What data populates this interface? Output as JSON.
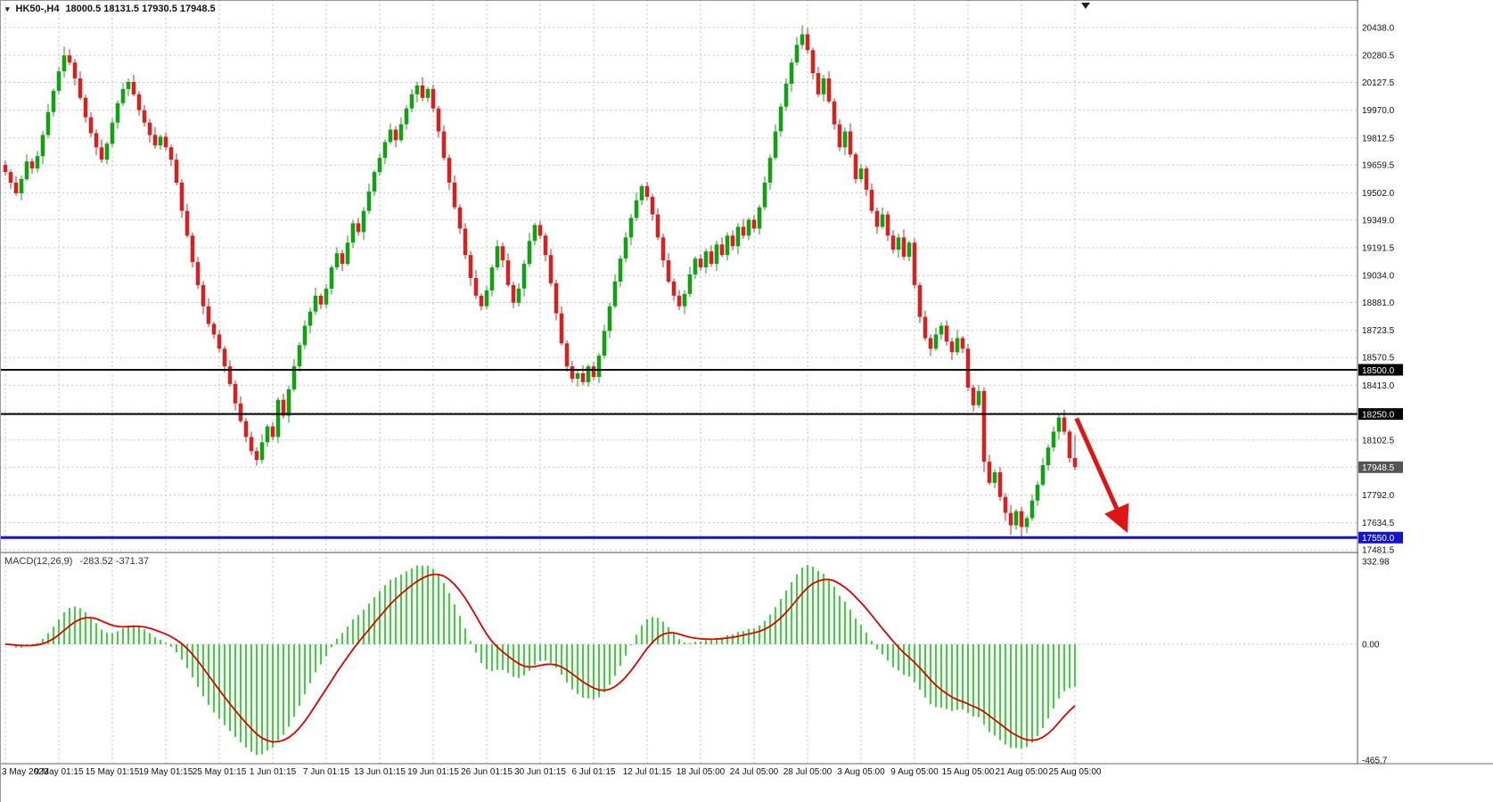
{
  "header": {
    "dropdown_icon": "▾",
    "symbol_period": "HK50-,H4",
    "ohlc": "18000.5 18131.5 17930.5 17948.5"
  },
  "colors": {
    "bull": "#13a113",
    "bear": "#d22323",
    "grid": "#c6c6c6",
    "level_black": "#000000",
    "level_blue": "#1414c8",
    "arrow_red": "#e01414",
    "macd_hist": "#3bd43b",
    "macd_signal": "#dd0000",
    "axis_text": "#111111",
    "current_price_bg": "#555555"
  },
  "chart_data": {
    "type": "candlestick",
    "symbol": "HK50-",
    "timeframe": "H4",
    "current_bar_ohlc": {
      "open": 18000.5,
      "high": 18131.5,
      "low": 17930.5,
      "close": 17948.5
    },
    "price_axis": {
      "ticks": [
        {
          "v": 20438.0,
          "label": "20438.0"
        },
        {
          "v": 20280.5,
          "label": "20280.5"
        },
        {
          "v": 20127.5,
          "label": "20127.5"
        },
        {
          "v": 19970.0,
          "label": "19970.0"
        },
        {
          "v": 19812.5,
          "label": "19812.5"
        },
        {
          "v": 19659.5,
          "label": "19659.5"
        },
        {
          "v": 19502.0,
          "label": "19502.0"
        },
        {
          "v": 19349.0,
          "label": "19349.0"
        },
        {
          "v": 19191.5,
          "label": "19191.5"
        },
        {
          "v": 19034.0,
          "label": "19034.0"
        },
        {
          "v": 18881.0,
          "label": "18881.0"
        },
        {
          "v": 18723.5,
          "label": "18723.5"
        },
        {
          "v": 18570.5,
          "label": "18570.5"
        },
        {
          "v": 18413.0,
          "label": "18413.0"
        },
        {
          "v": 18255.5,
          "label": ""
        },
        {
          "v": 18102.5,
          "label": "18102.5"
        },
        {
          "v": 17948.5,
          "label": ""
        },
        {
          "v": 17792.0,
          "label": "17792.0"
        },
        {
          "v": 17634.5,
          "label": "17634.5"
        },
        {
          "v": 17481.5,
          "label": "17481.5"
        }
      ],
      "boxed": [
        {
          "v": 18500.0,
          "label": "18500.0",
          "bg": "#000000",
          "fg": "#ffffff"
        },
        {
          "v": 18250.0,
          "label": "18250.0",
          "bg": "#000000",
          "fg": "#ffffff"
        },
        {
          "v": 17948.5,
          "label": "17948.5",
          "bg": "#555555",
          "fg": "#ffffff"
        },
        {
          "v": 17550.0,
          "label": "17550.0",
          "bg": "#1414c8",
          "fg": "#ffffff"
        }
      ]
    },
    "levels": [
      {
        "v": 18500.0,
        "color": "#000000",
        "w": 2
      },
      {
        "v": 18250.0,
        "color": "#000000",
        "w": 2
      },
      {
        "v": 17550.0,
        "color": "#1414c8",
        "w": 3
      }
    ],
    "arrow": {
      "from_bar": 200.3,
      "from_price": 18225,
      "to_bar": 208.6,
      "to_price": 17660,
      "color": "#e01414"
    },
    "time_axis": {
      "labels": [
        "3 May 2023",
        "9 May 01:15",
        "15 May 01:15",
        "19 May 01:15",
        "25 May 01:15",
        "1 Jun 01:15",
        "7 Jun 01:15",
        "13 Jun 01:15",
        "19 Jun 01:15",
        "26 Jun 01:15",
        "30 Jun 01:15",
        "6 Jul 01:15",
        "12 Jul 01:15",
        "18 Jul 05:00",
        "24 Jul 05:00",
        "28 Jul 05:00",
        "3 Aug 05:00",
        "9 Aug 05:00",
        "15 Aug 05:00",
        "21 Aug 05:00",
        "25 Aug 05:00"
      ],
      "bars_per_label": 10
    },
    "indicator": {
      "name": "MACD(12,26,9)",
      "values_text": "-283.52 -371.37",
      "value_main": -283.52,
      "value_signal": -371.37,
      "fast": 12,
      "slow": 26,
      "signal": 9,
      "axis_ticks": [
        {
          "v": 332.98,
          "label": "332.98"
        },
        {
          "v": 0,
          "label": "0.00"
        },
        {
          "v": -465.7,
          "label": "-465.7"
        }
      ]
    },
    "candles": [
      [
        19660,
        19685,
        19600,
        19620
      ],
      [
        19620,
        19635,
        19525,
        19560
      ],
      [
        19560,
        19595,
        19485,
        19500
      ],
      [
        19500,
        19600,
        19460,
        19580
      ],
      [
        19580,
        19720,
        19568,
        19680
      ],
      [
        19680,
        19698,
        19610,
        19640
      ],
      [
        19640,
        19740,
        19618,
        19710
      ],
      [
        19710,
        19852,
        19665,
        19830
      ],
      [
        19830,
        20005,
        19812,
        19960
      ],
      [
        19960,
        20092,
        19935,
        20080
      ],
      [
        20080,
        20215,
        20060,
        20190
      ],
      [
        20190,
        20330,
        20155,
        20280
      ],
      [
        20280,
        20315,
        20225,
        20240
      ],
      [
        20240,
        20260,
        20110,
        20150
      ],
      [
        20150,
        20190,
        20028,
        20040
      ],
      [
        20040,
        20058,
        19900,
        19930
      ],
      [
        19930,
        19960,
        19818,
        19840
      ],
      [
        19840,
        19862,
        19715,
        19760
      ],
      [
        19760,
        19805,
        19672,
        19690
      ],
      [
        19690,
        19792,
        19665,
        19780
      ],
      [
        19780,
        19925,
        19760,
        19900
      ],
      [
        19900,
        20025,
        19865,
        20010
      ],
      [
        20010,
        20125,
        19995,
        20090
      ],
      [
        20090,
        20150,
        20050,
        20130
      ],
      [
        20130,
        20170,
        20048,
        20060
      ],
      [
        20060,
        20078,
        19940,
        19970
      ],
      [
        19970,
        20000,
        19878,
        19900
      ],
      [
        19900,
        19922,
        19785,
        19830
      ],
      [
        19830,
        19875,
        19752,
        19770
      ],
      [
        19770,
        19832,
        19745,
        19820
      ],
      [
        19820,
        19845,
        19740,
        19760
      ],
      [
        19760,
        19775,
        19655,
        19690
      ],
      [
        19690,
        19725,
        19545,
        19560
      ],
      [
        19560,
        19580,
        19360,
        19400
      ],
      [
        19400,
        19440,
        19248,
        19260
      ],
      [
        19260,
        19278,
        19080,
        19110
      ],
      [
        19110,
        19140,
        18958,
        18980
      ],
      [
        18980,
        19002,
        18815,
        18860
      ],
      [
        18860,
        18905,
        18742,
        18760
      ],
      [
        18760,
        18772,
        18675,
        18700
      ],
      [
        18700,
        18725,
        18600,
        18620
      ],
      [
        18620,
        18635,
        18485,
        18520
      ],
      [
        18520,
        18555,
        18405,
        18420
      ],
      [
        18420,
        18440,
        18270,
        18310
      ],
      [
        18310,
        18350,
        18198,
        18210
      ],
      [
        18210,
        18228,
        18090,
        18120
      ],
      [
        18120,
        18150,
        18018,
        18040
      ],
      [
        18040,
        18062,
        17958,
        17990
      ],
      [
        17990,
        18135,
        17972,
        18090
      ],
      [
        18090,
        18192,
        18065,
        18180
      ],
      [
        18180,
        18205,
        18100,
        18120
      ],
      [
        18120,
        18345,
        18085,
        18330
      ],
      [
        18330,
        18365,
        18225,
        18240
      ],
      [
        18240,
        18410,
        18200,
        18390
      ],
      [
        18390,
        18560,
        18378,
        18520
      ],
      [
        18520,
        18658,
        18490,
        18640
      ],
      [
        18640,
        18780,
        18618,
        18750
      ],
      [
        18750,
        18852,
        18705,
        18830
      ],
      [
        18830,
        18965,
        18812,
        18920
      ],
      [
        18920,
        18932,
        18845,
        18870
      ],
      [
        18870,
        18985,
        18850,
        18960
      ],
      [
        18960,
        19095,
        18925,
        19080
      ],
      [
        19080,
        19195,
        19065,
        19160
      ],
      [
        19160,
        19180,
        19060,
        19100
      ],
      [
        19100,
        19260,
        19088,
        19220
      ],
      [
        19220,
        19348,
        19190,
        19330
      ],
      [
        19330,
        19360,
        19258,
        19280
      ],
      [
        19280,
        19422,
        19235,
        19400
      ],
      [
        19400,
        19555,
        19382,
        19510
      ],
      [
        19510,
        19632,
        19485,
        19620
      ],
      [
        19620,
        19725,
        19600,
        19700
      ],
      [
        19700,
        19805,
        19665,
        19790
      ],
      [
        19790,
        19895,
        19775,
        19860
      ],
      [
        19860,
        19880,
        19760,
        19800
      ],
      [
        19800,
        19930,
        19788,
        19890
      ],
      [
        19890,
        19998,
        19860,
        19980
      ],
      [
        19980,
        20090,
        19958,
        20060
      ],
      [
        20060,
        20132,
        20015,
        20110
      ],
      [
        20110,
        20155,
        20022,
        20040
      ],
      [
        20040,
        20102,
        20015,
        20090
      ],
      [
        20090,
        20115,
        19960,
        19980
      ],
      [
        19980,
        19995,
        19815,
        19850
      ],
      [
        19850,
        19885,
        19685,
        19700
      ],
      [
        19700,
        19720,
        19520,
        19560
      ],
      [
        19560,
        19600,
        19408,
        19420
      ],
      [
        19420,
        19438,
        19270,
        19300
      ],
      [
        19300,
        19330,
        19128,
        19150
      ],
      [
        19150,
        19172,
        18975,
        19020
      ],
      [
        19020,
        19065,
        18902,
        18920
      ],
      [
        18920,
        18932,
        18835,
        18860
      ],
      [
        18860,
        18975,
        18840,
        18950
      ],
      [
        18950,
        19095,
        18915,
        19080
      ],
      [
        19080,
        19235,
        19065,
        19200
      ],
      [
        19200,
        19220,
        19080,
        19120
      ],
      [
        19120,
        19160,
        18968,
        18980
      ],
      [
        18980,
        18998,
        18850,
        18880
      ],
      [
        18880,
        18990,
        18858,
        18960
      ],
      [
        18960,
        19122,
        18915,
        19100
      ],
      [
        19100,
        19275,
        19082,
        19230
      ],
      [
        19230,
        19332,
        19205,
        19320
      ],
      [
        19320,
        19345,
        19240,
        19260
      ],
      [
        19260,
        19275,
        19115,
        19150
      ],
      [
        19150,
        19185,
        18975,
        18990
      ],
      [
        18990,
        19010,
        18780,
        18820
      ],
      [
        18820,
        18860,
        18638,
        18650
      ],
      [
        18650,
        18668,
        18490,
        18520
      ],
      [
        18520,
        18550,
        18428,
        18450
      ],
      [
        18450,
        18502,
        18405,
        18480
      ],
      [
        18480,
        18525,
        18412,
        18430
      ],
      [
        18430,
        18532,
        18405,
        18520
      ],
      [
        18520,
        18545,
        18440,
        18460
      ],
      [
        18460,
        18595,
        18425,
        18580
      ],
      [
        18580,
        18755,
        18565,
        18720
      ],
      [
        18720,
        18880,
        18680,
        18860
      ],
      [
        18860,
        19040,
        18848,
        19000
      ],
      [
        19000,
        19148,
        18970,
        19130
      ],
      [
        19130,
        19280,
        19108,
        19250
      ],
      [
        19250,
        19382,
        19205,
        19360
      ],
      [
        19360,
        19505,
        19342,
        19460
      ],
      [
        19460,
        19552,
        19435,
        19540
      ],
      [
        19540,
        19565,
        19460,
        19480
      ],
      [
        19480,
        19495,
        19345,
        19380
      ],
      [
        19380,
        19415,
        19235,
        19250
      ],
      [
        19250,
        19270,
        19080,
        19120
      ],
      [
        19120,
        19160,
        18988,
        19000
      ],
      [
        19000,
        19018,
        18890,
        18920
      ],
      [
        18920,
        18950,
        18838,
        18860
      ],
      [
        18860,
        18952,
        18815,
        18930
      ],
      [
        18930,
        19085,
        18912,
        19040
      ],
      [
        19040,
        19142,
        19015,
        19130
      ],
      [
        19130,
        19155,
        19060,
        19080
      ],
      [
        19080,
        19185,
        19045,
        19170
      ],
      [
        19170,
        19205,
        19085,
        19100
      ],
      [
        19100,
        19230,
        19060,
        19210
      ],
      [
        19210,
        19250,
        19138,
        19150
      ],
      [
        19150,
        19278,
        19120,
        19260
      ],
      [
        19260,
        19290,
        19178,
        19200
      ],
      [
        19200,
        19332,
        19155,
        19310
      ],
      [
        19310,
        19355,
        19242,
        19260
      ],
      [
        19260,
        19362,
        19235,
        19350
      ],
      [
        19350,
        19375,
        19280,
        19300
      ],
      [
        19300,
        19435,
        19265,
        19420
      ],
      [
        19420,
        19595,
        19405,
        19560
      ],
      [
        19560,
        19720,
        19520,
        19700
      ],
      [
        19700,
        19890,
        19688,
        19850
      ],
      [
        19850,
        20008,
        19820,
        19990
      ],
      [
        19990,
        20150,
        19968,
        20120
      ],
      [
        20120,
        20262,
        20075,
        20240
      ],
      [
        20240,
        20385,
        20222,
        20340
      ],
      [
        20340,
        20450,
        20315,
        20400
      ],
      [
        20400,
        20435,
        20290,
        20310
      ],
      [
        20310,
        20325,
        20145,
        20180
      ],
      [
        20180,
        20215,
        20045,
        20060
      ],
      [
        20060,
        20170,
        20020,
        20150
      ],
      [
        20150,
        20190,
        20008,
        20020
      ],
      [
        20020,
        20038,
        19860,
        19890
      ],
      [
        19890,
        19920,
        19738,
        19760
      ],
      [
        19760,
        19872,
        19715,
        19850
      ],
      [
        19850,
        19895,
        19702,
        19720
      ],
      [
        19720,
        19732,
        19555,
        19580
      ],
      [
        19580,
        19665,
        19560,
        19640
      ],
      [
        19640,
        19655,
        19485,
        19520
      ],
      [
        19520,
        19555,
        19385,
        19400
      ],
      [
        19400,
        19420,
        19270,
        19310
      ],
      [
        19310,
        19420,
        19298,
        19380
      ],
      [
        19380,
        19398,
        19230,
        19260
      ],
      [
        19260,
        19290,
        19158,
        19180
      ],
      [
        19180,
        19272,
        19135,
        19250
      ],
      [
        19250,
        19295,
        19122,
        19140
      ],
      [
        19140,
        19232,
        19115,
        19220
      ],
      [
        19220,
        19245,
        18960,
        18980
      ],
      [
        18980,
        18995,
        18765,
        18800
      ],
      [
        18800,
        18835,
        18665,
        18680
      ],
      [
        18680,
        18700,
        18580,
        18620
      ],
      [
        18620,
        18740,
        18608,
        18700
      ],
      [
        18700,
        18768,
        18670,
        18750
      ],
      [
        18750,
        18780,
        18638,
        18660
      ],
      [
        18660,
        18682,
        18555,
        18600
      ],
      [
        18600,
        18725,
        18582,
        18680
      ],
      [
        18680,
        18692,
        18595,
        18620
      ],
      [
        18620,
        18645,
        18380,
        18400
      ],
      [
        18400,
        18415,
        18265,
        18300
      ],
      [
        18300,
        18415,
        18285,
        18380
      ],
      [
        18380,
        18400,
        17920,
        17980
      ],
      [
        17980,
        18020,
        17848,
        17860
      ],
      [
        17860,
        17938,
        17830,
        17920
      ],
      [
        17920,
        17950,
        17758,
        17780
      ],
      [
        17780,
        17802,
        17645,
        17690
      ],
      [
        17690,
        17735,
        17565,
        17620
      ],
      [
        17620,
        17712,
        17595,
        17700
      ],
      [
        17700,
        17725,
        17558,
        17610
      ],
      [
        17610,
        17675,
        17575,
        17660
      ],
      [
        17660,
        17795,
        17645,
        17760
      ],
      [
        17760,
        17870,
        17730,
        17850
      ],
      [
        17850,
        18000,
        17838,
        17960
      ],
      [
        17960,
        18078,
        17930,
        18060
      ],
      [
        18060,
        18180,
        18038,
        18150
      ],
      [
        18150,
        18252,
        18105,
        18230
      ],
      [
        18230,
        18275,
        18132,
        18150
      ],
      [
        18150,
        18162,
        17975,
        18000
      ],
      [
        18000.5,
        18131.5,
        17930.5,
        17948.5
      ]
    ]
  }
}
